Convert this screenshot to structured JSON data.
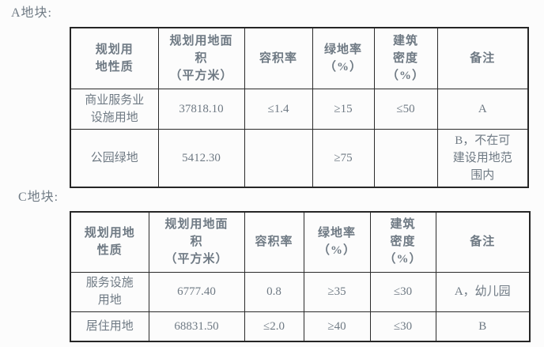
{
  "page": {
    "background": "#fcfcfc",
    "text_color": "#6f7a84",
    "border_color": "#262626"
  },
  "sections": [
    {
      "label": "A地块:",
      "table": {
        "headers": [
          "规划用\n地性质",
          "规划用地面\n积\n（平方米）",
          "容积率",
          "绿地率\n（%）",
          "建筑\n密度\n（%）",
          "备注"
        ],
        "rows": [
          [
            "商业服务业\n设施用地",
            "37818.10",
            "≤1.4",
            "≥15",
            "≤50",
            "A"
          ],
          [
            "公园绿地",
            "5412.30",
            "",
            "≥75",
            "",
            "B，不在可\n建设用地范\n围内"
          ]
        ]
      }
    },
    {
      "label": "C地块:",
      "table": {
        "headers": [
          "规划用地\n性质",
          "规划用地面\n积\n（平方米）",
          "容积率",
          "绿地率\n（%）",
          "建筑\n密度\n（%）",
          "备注"
        ],
        "rows": [
          [
            "服务设施\n用地",
            "6777.40",
            "0.8",
            "≥35",
            "≤30",
            "A，幼儿园"
          ],
          [
            "居住用地",
            "68831.50",
            "≤2.0",
            "≥40",
            "≤30",
            "B"
          ]
        ]
      }
    }
  ]
}
